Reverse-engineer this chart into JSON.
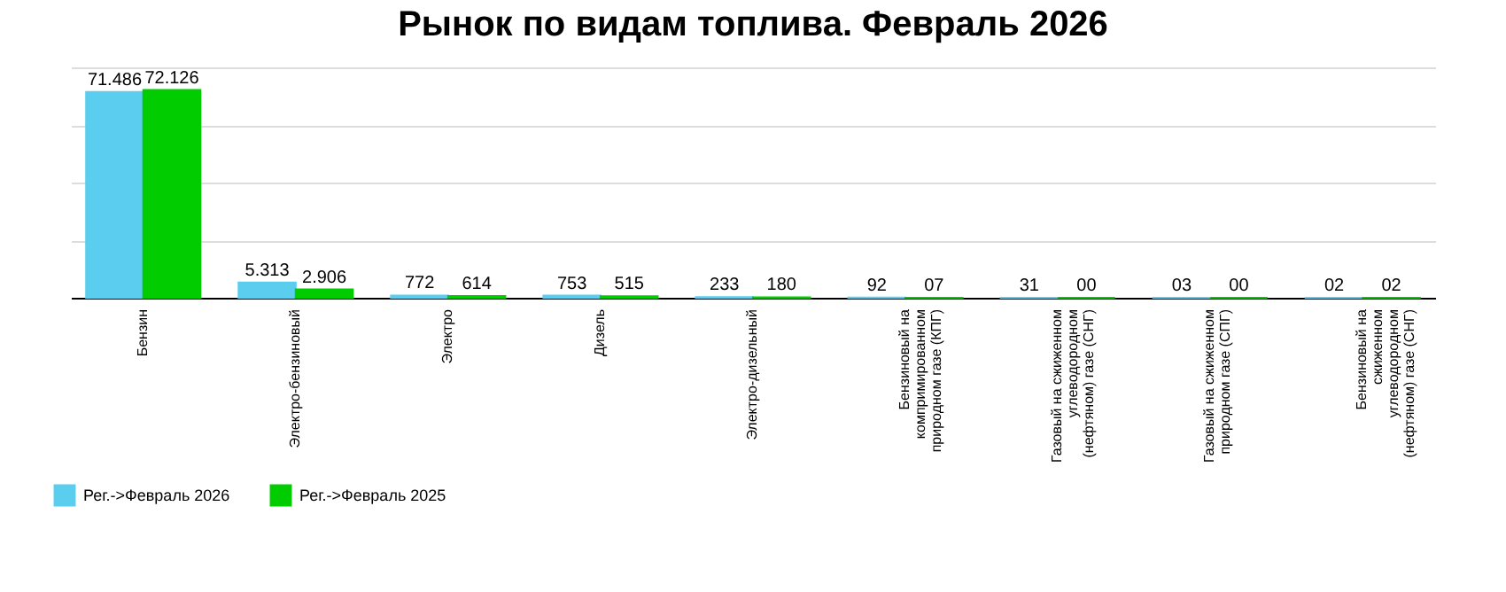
{
  "chart_data": {
    "type": "bar",
    "title": "Рынок по видам топлива. Февраль 2026",
    "categories": [
      "Бензин",
      "Электро-бензиновый",
      "Электро",
      "Дизель",
      "Электро-дизельный",
      "Бензиновый на компримированном природном газе (КПГ)",
      "Газовый на сжиженном углеводородном (нефтяном) газе (СНГ)",
      "Газовый на сжиженном природном газе (СПГ)",
      "Бензиновый на сжиженном углеводородном (нефтяном) газе (СНГ)"
    ],
    "series": [
      {
        "name": "Рег.->Февраль 2026",
        "color": "#5bcdee",
        "values": [
          71486,
          5313,
          772,
          753,
          233,
          92,
          31,
          3,
          2
        ],
        "value_labels": [
          "71.486",
          "5.313",
          "772",
          "753",
          "233",
          "92",
          "31",
          "03",
          "02"
        ]
      },
      {
        "name": "Рег.->Февраль 2025",
        "color": "#00cc00",
        "values": [
          72126,
          2906,
          614,
          515,
          180,
          7,
          0,
          0,
          2
        ],
        "value_labels": [
          "72.126",
          "2.906",
          "614",
          "515",
          "180",
          "07",
          "00",
          "00",
          "02"
        ]
      }
    ],
    "grid": "y",
    "legend": "bottom left"
  }
}
